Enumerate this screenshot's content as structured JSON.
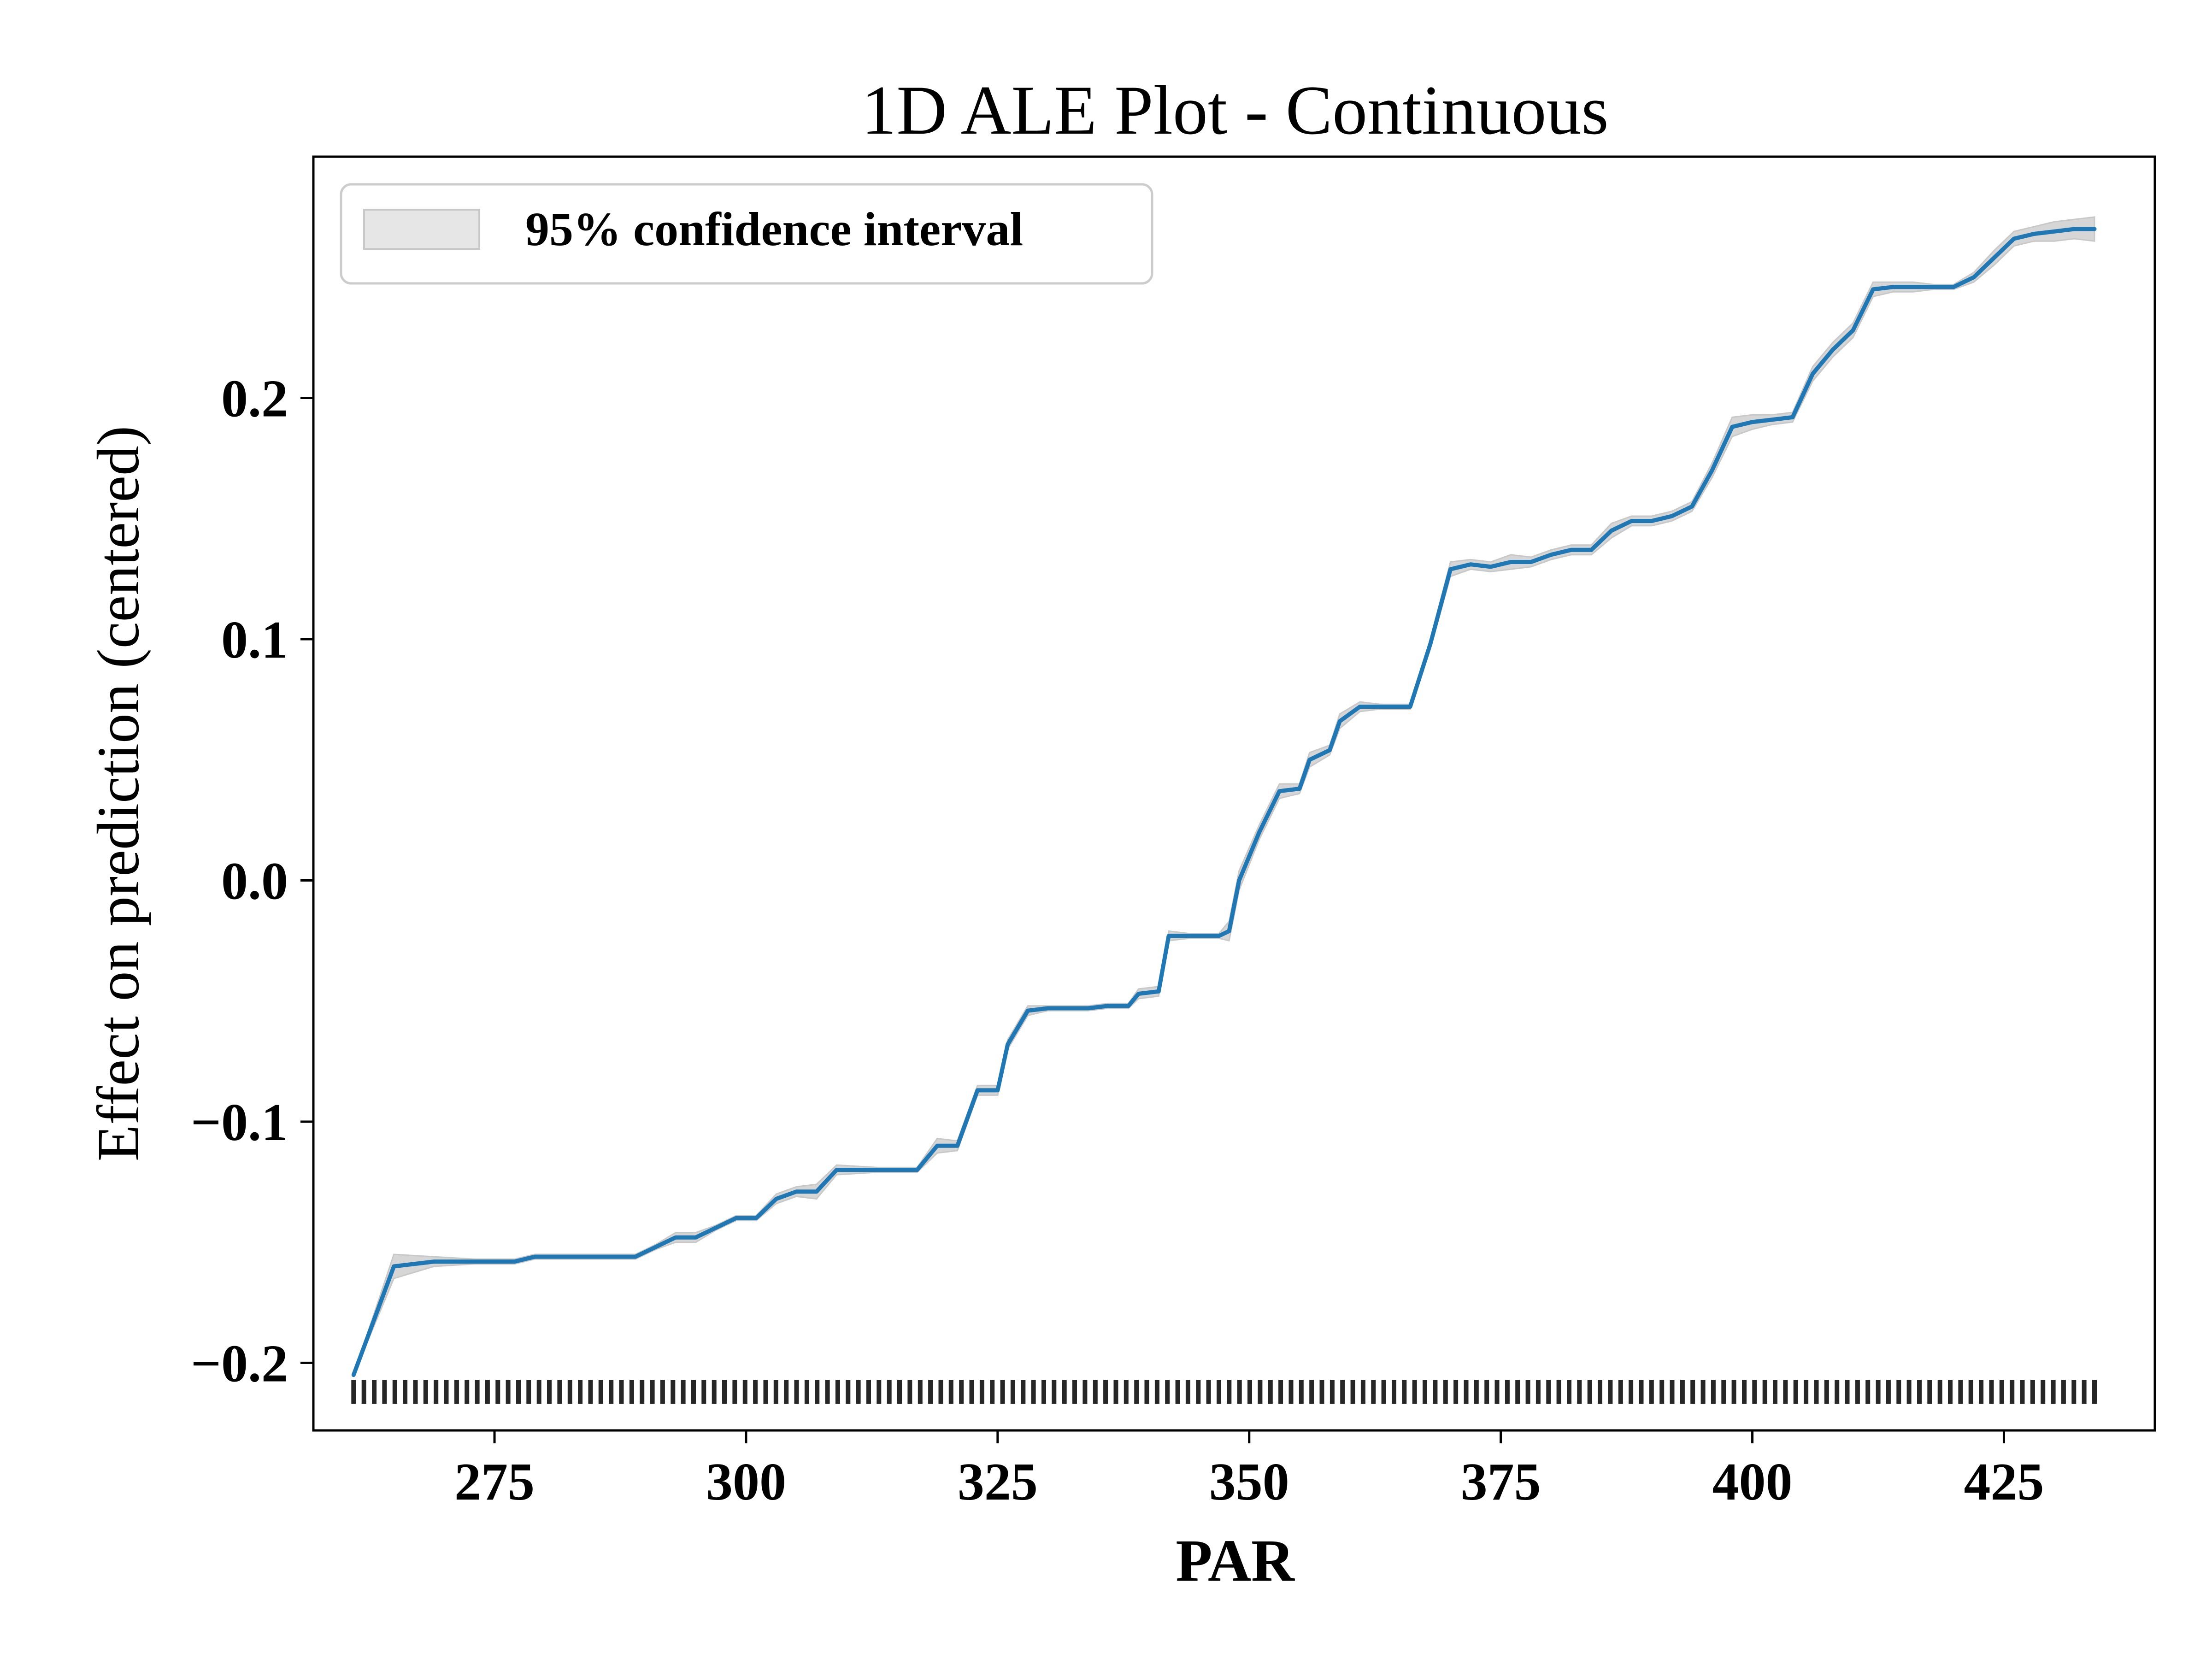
{
  "chart_data": {
    "type": "line",
    "title": "1D ALE Plot - Continuous",
    "xlabel": "PAR",
    "ylabel": "Effect on prediction (centered)",
    "xlim": [
      257,
      440
    ],
    "ylim": [
      -0.228,
      0.3
    ],
    "xticks": [
      275,
      300,
      325,
      350,
      375,
      400,
      425
    ],
    "xtick_labels": [
      "275",
      "300",
      "325",
      "350",
      "375",
      "400",
      "425"
    ],
    "yticks": [
      -0.2,
      -0.1,
      0.0,
      0.1,
      0.2
    ],
    "ytick_labels": [
      "−0.2",
      "−0.1",
      "0.0",
      "0.1",
      "0.2"
    ],
    "grid": false,
    "legend": {
      "position": "top-left",
      "entries": [
        "95% confidence interval"
      ]
    },
    "colors": {
      "line": "#1f77b4",
      "band": "#c8c8c8",
      "rug": "#000000"
    },
    "series": [
      {
        "x": [
          261,
          265,
          269,
          273,
          277,
          279,
          283,
          287,
          289,
          291,
          293,
          295,
          297,
          299,
          301,
          303,
          305,
          307,
          309,
          313,
          317,
          319,
          321,
          323,
          325,
          326,
          328,
          330,
          332,
          334,
          336,
          338,
          339,
          341,
          342,
          344,
          346,
          347,
          348,
          349,
          351,
          353,
          355,
          356,
          358,
          359,
          361,
          363,
          364,
          366,
          368,
          370,
          372,
          374,
          376,
          378,
          380,
          382,
          384,
          386,
          388,
          390,
          392,
          394,
          396,
          398,
          400,
          402,
          404,
          406,
          408,
          410,
          412,
          414,
          416,
          418,
          420,
          422,
          424,
          426,
          428,
          430,
          432,
          434
        ],
        "y": [
          -0.205,
          -0.16,
          -0.158,
          -0.158,
          -0.158,
          -0.156,
          -0.156,
          -0.156,
          -0.156,
          -0.152,
          -0.148,
          -0.148,
          -0.144,
          -0.14,
          -0.14,
          -0.132,
          -0.129,
          -0.129,
          -0.12,
          -0.12,
          -0.12,
          -0.11,
          -0.11,
          -0.087,
          -0.087,
          -0.068,
          -0.054,
          -0.053,
          -0.053,
          -0.053,
          -0.052,
          -0.052,
          -0.047,
          -0.046,
          -0.023,
          -0.023,
          -0.023,
          -0.023,
          -0.021,
          0.0,
          0.02,
          0.037,
          0.038,
          0.05,
          0.054,
          0.066,
          0.072,
          0.072,
          0.072,
          0.072,
          0.098,
          0.129,
          0.131,
          0.13,
          0.132,
          0.132,
          0.135,
          0.137,
          0.137,
          0.145,
          0.149,
          0.149,
          0.151,
          0.155,
          0.17,
          0.188,
          0.19,
          0.191,
          0.192,
          0.21,
          0.22,
          0.228,
          0.245,
          0.246,
          0.246,
          0.246,
          0.246,
          0.25,
          0.258,
          0.266,
          0.268,
          0.269,
          0.27,
          0.27
        ]
      }
    ],
    "confidence_band_width": [
      0,
      0.005,
      0.002,
      0.001,
      0.001,
      0.001,
      0.001,
      0.001,
      0.001,
      0.001,
      0.002,
      0.002,
      0.001,
      0.001,
      0.001,
      0.002,
      0.002,
      0.003,
      0.002,
      0.001,
      0.001,
      0.003,
      0.002,
      0.002,
      0.002,
      0.002,
      0.002,
      0.001,
      0.001,
      0.001,
      0.001,
      0.001,
      0.002,
      0.002,
      0.002,
      0.001,
      0.001,
      0.001,
      0.004,
      0.004,
      0.003,
      0.003,
      0.002,
      0.003,
      0.002,
      0.003,
      0.002,
      0.001,
      0.001,
      0.001,
      0.002,
      0.003,
      0.002,
      0.002,
      0.003,
      0.002,
      0.002,
      0.002,
      0.002,
      0.003,
      0.002,
      0.002,
      0.002,
      0.002,
      0.003,
      0.004,
      0.003,
      0.002,
      0.002,
      0.003,
      0.003,
      0.003,
      0.003,
      0.002,
      0.002,
      0.001,
      0.001,
      0.002,
      0.003,
      0.003,
      0.003,
      0.004,
      0.004,
      0.005
    ],
    "rug_x_range": [
      261,
      434
    ],
    "rug_y": -0.212
  }
}
